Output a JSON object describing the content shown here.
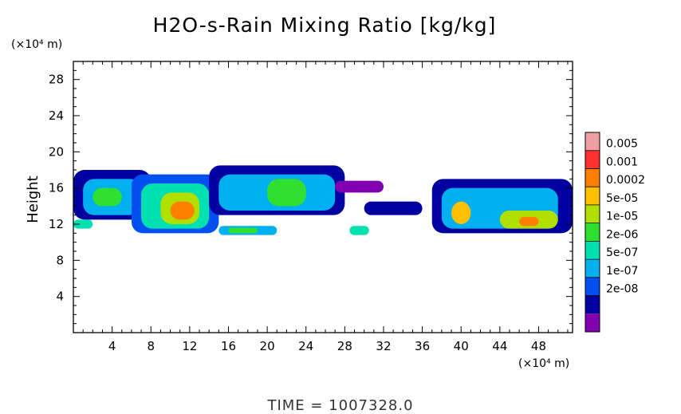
{
  "chart_data": {
    "type": "heatmap",
    "title": "H2O-s-Rain Mixing Ratio [kg/kg]",
    "ylabel": "Height",
    "y_unit": "(×10⁴ m)",
    "x_unit": "(×10⁴ m)",
    "xlim": [
      0,
      51.5
    ],
    "ylim": [
      0,
      30
    ],
    "x_ticks": [
      "4",
      "8",
      "12",
      "16",
      "20",
      "24",
      "28",
      "32",
      "36",
      "40",
      "44",
      "48"
    ],
    "y_ticks": [
      "4",
      "8",
      "12",
      "16",
      "20",
      "24",
      "28"
    ],
    "time_label": "TIME  =  1007328.0",
    "colorbar": {
      "labels": [
        "0.005",
        "0.001",
        "0.0002",
        "5e-05",
        "1e-05",
        "2e-06",
        "5e-07",
        "1e-07",
        "2e-08"
      ],
      "colors": [
        "#f0a0a0",
        "#ff3030",
        "#ff8000",
        "#ffc000",
        "#b0e000",
        "#30e030",
        "#00e0b0",
        "#00b0f0",
        "#0050f0",
        "#0000a0",
        "#8000b0"
      ]
    },
    "levels": [
      2e-09,
      2e-08,
      1e-07,
      5e-07,
      2e-06,
      1e-05,
      5e-05,
      0.0002,
      0.001,
      0.005
    ],
    "cells": [
      {
        "x": [
          0,
          8
        ],
        "y": [
          12.5,
          18
        ],
        "level": 1
      },
      {
        "x": [
          1,
          7
        ],
        "y": [
          13,
          17
        ],
        "level": 3
      },
      {
        "x": [
          2,
          5
        ],
        "y": [
          14,
          16
        ],
        "level": 5
      },
      {
        "x": [
          0,
          2
        ],
        "y": [
          11.5,
          12.5
        ],
        "level": 4
      },
      {
        "x": [
          6,
          15
        ],
        "y": [
          11,
          17.5
        ],
        "level": 2
      },
      {
        "x": [
          7,
          14
        ],
        "y": [
          11.5,
          16.5
        ],
        "level": 4
      },
      {
        "x": [
          9,
          13
        ],
        "y": [
          12,
          15.5
        ],
        "level": 6
      },
      {
        "x": [
          10,
          12.5
        ],
        "y": [
          12.5,
          14.5
        ],
        "level": 8
      },
      {
        "x": [
          14,
          28
        ],
        "y": [
          13,
          18.5
        ],
        "level": 1
      },
      {
        "x": [
          15,
          27
        ],
        "y": [
          13.5,
          17.5
        ],
        "level": 3
      },
      {
        "x": [
          20,
          24
        ],
        "y": [
          14,
          17
        ],
        "level": 5
      },
      {
        "x": [
          15,
          21
        ],
        "y": [
          10.8,
          11.8
        ],
        "level": 3
      },
      {
        "x": [
          16,
          19
        ],
        "y": [
          11,
          11.6
        ],
        "level": 5
      },
      {
        "x": [
          27,
          32
        ],
        "y": [
          15.5,
          16.8
        ],
        "level": 0
      },
      {
        "x": [
          28.5,
          30.5
        ],
        "y": [
          10.8,
          11.8
        ],
        "level": 4
      },
      {
        "x": [
          30,
          36
        ],
        "y": [
          13,
          14.5
        ],
        "level": 1
      },
      {
        "x": [
          37,
          51.5
        ],
        "y": [
          11,
          17
        ],
        "level": 1
      },
      {
        "x": [
          38,
          50
        ],
        "y": [
          11.5,
          16
        ],
        "level": 3
      },
      {
        "x": [
          39,
          41
        ],
        "y": [
          12,
          14.5
        ],
        "level": 7
      },
      {
        "x": [
          44,
          50
        ],
        "y": [
          11.5,
          13.5
        ],
        "level": 6
      },
      {
        "x": [
          46,
          48
        ],
        "y": [
          11.8,
          12.8
        ],
        "level": 8
      }
    ]
  }
}
